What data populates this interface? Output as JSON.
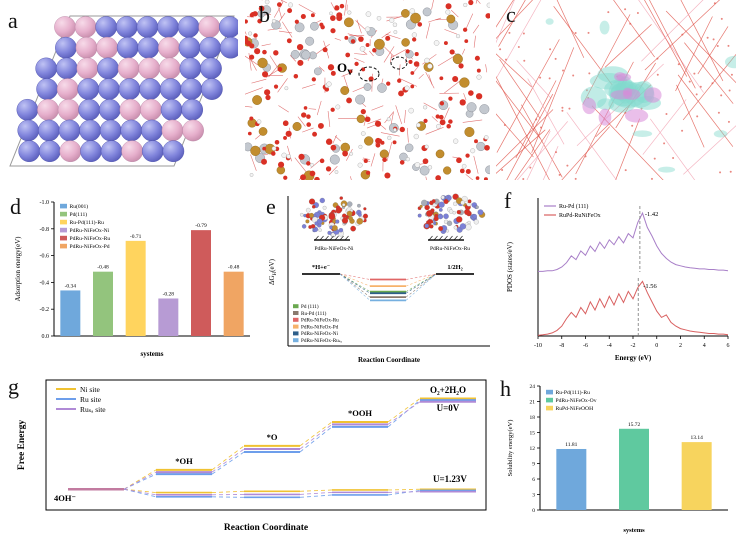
{
  "panels": {
    "a": {
      "label": "a",
      "sphere_blue": [
        "#c0c3f4",
        "#8185dc",
        "#5357b5"
      ],
      "sphere_pink": [
        "#f7dbe9",
        "#e6afcc",
        "#c287a6"
      ],
      "border": "#9a9a9a"
    },
    "b": {
      "label": "b",
      "vacancy_label": {
        "main": "O",
        "sub": "V"
      },
      "palette": {
        "oxygen": "#d93025",
        "metal_gold": "#c28d2e",
        "metal_gray": "#c3c8cf",
        "hydrogen": "#f4f4f4",
        "bond": "#d64545"
      }
    },
    "c": {
      "label": "c",
      "palette": {
        "lattice_red": "#e0544a",
        "lattice_pink": "#f2a3b3",
        "isosurface_cyan": "#82d9cd",
        "isosurface_magenta": "#d98ad9"
      }
    },
    "d": {
      "label": "d"
    },
    "e": {
      "label": "e"
    },
    "f": {
      "label": "f"
    },
    "g": {
      "label": "g"
    },
    "h": {
      "label": "h"
    }
  },
  "chart_data": [
    {
      "id": "d",
      "type": "bar",
      "title": "",
      "xlabel": "systems",
      "ylabel": "Adsorption energy(eV)",
      "ylim": [
        0,
        -1.0
      ],
      "yticks": [
        0,
        -0.2,
        -0.4,
        -0.6,
        -0.8,
        -1.0
      ],
      "categories": [
        "Ru(001)",
        "Pd(111)",
        "Ru-Pd(111)-Ru",
        "PdRu-NiFeOx-Ni",
        "PdRu-NiFeOx-Ru",
        "PdRu-NiFeOx-Pd"
      ],
      "values": [
        -0.34,
        -0.48,
        -0.71,
        -0.28,
        -0.79,
        -0.48
      ],
      "value_labels": [
        "-0.34",
        "-0.48",
        "-0.71",
        "-0.28",
        "-0.79",
        "-0.48"
      ],
      "bar_colors": [
        "#6fa8dc",
        "#93c47d",
        "#ffd45e",
        "#b79bd4",
        "#cf5b5b",
        "#f0a563"
      ],
      "legend_position": "top-left",
      "grid": false
    },
    {
      "id": "e",
      "type": "energy-level-diagram",
      "ylabel_parts": {
        "pre": "ΔG",
        "sub": "H",
        "post": "(eV)"
      },
      "xlabel": "Reaction Coordinate",
      "left_level_label": "*H+e⁻",
      "right_level_label": "1/2H₂",
      "inset_left_label": "PdRu-NiFeOx-Ni",
      "inset_right_label": "PdRu-NiFeOx-Ru",
      "series": [
        {
          "name": "Pd (111)",
          "color": "#6aa84f",
          "dG": -0.32
        },
        {
          "name": "Ru-Pd (111)",
          "color": "#8a7a6e",
          "dG": -0.42
        },
        {
          "name": "PdRu-NiFeOx-Ru",
          "color": "#e06666",
          "dG": -0.1
        },
        {
          "name": "PdRu-NiFeOx-Pd",
          "color": "#f6b26b",
          "dG": -0.22
        },
        {
          "name": "PdRu-NiFeOx-Ni",
          "color": "#2e5f8a",
          "dG": -0.35
        },
        {
          "name": "PdRu-NiFeOx-Ruₛₐ",
          "color": "#76b0e0",
          "dG": -0.48
        }
      ],
      "legend_position": "bottom-left"
    },
    {
      "id": "f",
      "type": "line",
      "ylabel": "PDOS (states/eV)",
      "xlabel": "Energy (eV)",
      "xlim": [
        -10,
        6
      ],
      "xticks": [
        -10,
        -8,
        -6,
        -4,
        -2,
        0,
        2,
        4,
        6
      ],
      "annotations": [
        {
          "text": "-1.42",
          "x": -1.42,
          "region": "top"
        },
        {
          "text": "-1.56",
          "x": -1.56,
          "region": "bottom"
        }
      ],
      "series": [
        {
          "name": "Ru-Pd (111)",
          "color": "#a87fc8",
          "y": [
            0.01,
            0.01,
            0.02,
            0.02,
            0.04,
            0.08,
            0.15,
            0.26,
            0.2,
            0.34,
            0.27,
            0.42,
            0.33,
            0.48,
            0.38,
            0.52,
            0.44,
            0.57,
            0.47,
            0.62,
            0.55,
            0.8,
            0.95,
            0.72,
            0.58,
            0.42,
            0.3,
            0.22,
            0.16,
            0.12,
            0.1,
            0.08,
            0.07,
            0.06,
            0.05,
            0.05,
            0.04,
            0.04,
            0.03,
            0.03,
            0.02
          ]
        },
        {
          "name": "RuPd-RuNiFeOx",
          "color": "#d96060",
          "y": [
            0.01,
            0.02,
            0.03,
            0.05,
            0.09,
            0.16,
            0.28,
            0.38,
            0.3,
            0.46,
            0.36,
            0.55,
            0.42,
            0.6,
            0.46,
            0.64,
            0.5,
            0.68,
            0.54,
            0.72,
            0.6,
            0.78,
            0.88,
            0.7,
            0.55,
            0.4,
            0.3,
            0.34,
            0.22,
            0.16,
            0.12,
            0.1,
            0.08,
            0.07,
            0.06,
            0.05,
            0.04,
            0.04,
            0.03,
            0.03,
            0.02
          ]
        }
      ],
      "legend_position": "top-left",
      "grid": false
    },
    {
      "id": "g",
      "type": "reaction-pathway",
      "ylabel": "Free Energy",
      "xlabel": "Reaction Coordinate",
      "ylim": [
        -0.8,
        5.6
      ],
      "step_labels": [
        "4OH⁻",
        "*OH",
        "*O",
        "*OOH",
        "O₂+2H₂O"
      ],
      "potential_labels": [
        "U=0V",
        "U=1.23V"
      ],
      "start_color": "#c27ba0",
      "series": [
        {
          "name": "Ni site",
          "color": "#f0c232",
          "U0": [
            0,
            1.05,
            2.35,
            3.65,
            4.92
          ],
          "U123": [
            0,
            -0.18,
            -0.11,
            -0.04,
            0
          ]
        },
        {
          "name": "Ru site",
          "color": "#6d9eeb",
          "U0": [
            0,
            0.82,
            2.02,
            3.38,
            4.92
          ],
          "U123": [
            0,
            -0.41,
            -0.44,
            -0.31,
            0
          ]
        },
        {
          "name": "Ruₛₐ site",
          "color": "#b08ad6",
          "U0": [
            0,
            0.93,
            2.18,
            3.52,
            4.92
          ],
          "U123": [
            0,
            -0.3,
            -0.28,
            -0.17,
            0
          ]
        }
      ],
      "legend_position": "top-left"
    },
    {
      "id": "h",
      "type": "bar",
      "title": "",
      "xlabel": "systems",
      "ylabel": "Solubility energy(eV)",
      "ylim": [
        0,
        24
      ],
      "yticks": [
        0,
        3,
        6,
        9,
        12,
        15,
        18,
        21,
        24
      ],
      "categories": [
        "Ru-Pd(111)-Ru",
        "PdRu-NiFeOx-Ov",
        "RuPd-NiFeOOH"
      ],
      "values": [
        11.81,
        15.72,
        13.14
      ],
      "value_labels": [
        "11.81",
        "15.72",
        "13.14"
      ],
      "bar_colors": [
        "#6fa8dc",
        "#5fc99f",
        "#f7d45e"
      ],
      "legend_position": "top-left",
      "grid": false
    }
  ]
}
